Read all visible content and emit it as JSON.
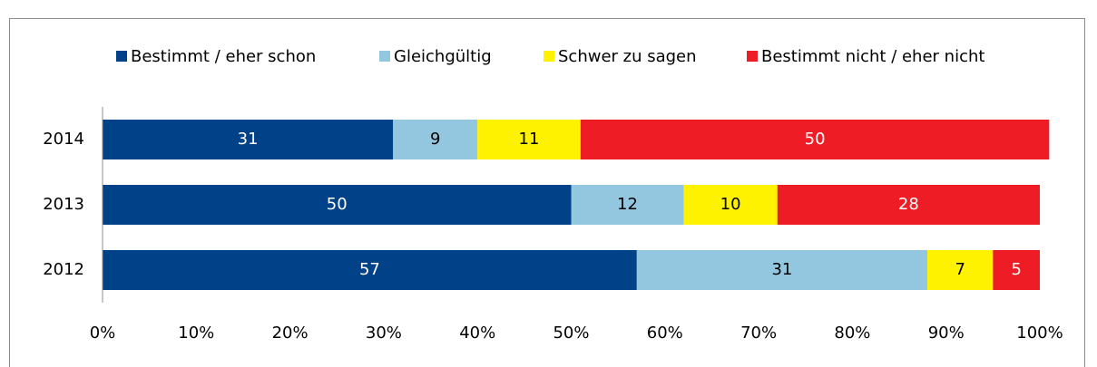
{
  "chart_data": {
    "type": "stacked_bar_horizontal",
    "categories": [
      "2014",
      "2013",
      "2012"
    ],
    "series": [
      {
        "name": "Bestimmt / eher schon",
        "color": "#004187",
        "label_color": "#ffffff",
        "values": [
          31,
          50,
          57
        ]
      },
      {
        "name": "Gleichgültig",
        "color": "#93c6df",
        "label_color": "#000000",
        "values": [
          9,
          12,
          31
        ]
      },
      {
        "name": "Schwer zu sagen",
        "color": "#fff200",
        "label_color": "#000000",
        "values": [
          11,
          10,
          7
        ]
      },
      {
        "name": "Bestimmt nicht / eher nicht",
        "color": "#ee1c25",
        "label_color": "#ffffff",
        "values": [
          50,
          28,
          5
        ]
      }
    ],
    "xlim": [
      0,
      100
    ],
    "xticks": [
      {
        "value": 0,
        "label": "0%"
      },
      {
        "value": 10,
        "label": "10%"
      },
      {
        "value": 20,
        "label": "20%"
      },
      {
        "value": 30,
        "label": "30%"
      },
      {
        "value": 40,
        "label": "40%"
      },
      {
        "value": 50,
        "label": "50%"
      },
      {
        "value": 60,
        "label": "60%"
      },
      {
        "value": 70,
        "label": "70%"
      },
      {
        "value": 80,
        "label": "80%"
      },
      {
        "value": 90,
        "label": "90%"
      },
      {
        "value": 100,
        "label": "100%"
      }
    ],
    "legend": "top"
  }
}
